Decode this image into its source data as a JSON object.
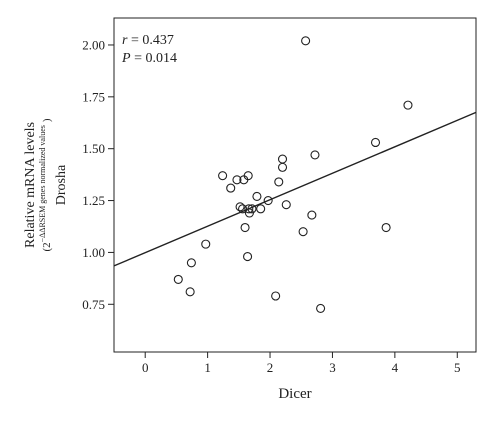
{
  "chart_data": {
    "type": "scatter",
    "title": "",
    "xlabel": "Dicer",
    "ylabel_line1": "Relative mRNA levels",
    "ylabel_line2_prefix": "(2",
    "ylabel_line2_sup": "−ΔΔRSEM genes normalized values",
    "ylabel_line2_suffix": ")",
    "ylabel_line3": "Drosha",
    "xlim": [
      -0.5,
      5.3
    ],
    "ylim": [
      0.52,
      2.13
    ],
    "x_ticks": [
      0,
      1,
      2,
      3,
      4,
      5
    ],
    "x_tick_labels": [
      "0",
      "1",
      "2",
      "3",
      "4",
      "5"
    ],
    "y_ticks": [
      0.75,
      1.0,
      1.25,
      1.5,
      1.75,
      2.0
    ],
    "y_tick_labels": [
      "0.75",
      "1.00",
      "1.25",
      "1.50",
      "1.75",
      "2.00"
    ],
    "annotation_r_symbol": "r",
    "annotation_r_value": " = 0.437",
    "annotation_p_symbol": "P",
    "annotation_p_value": " = 0.014",
    "regression_line": {
      "x": [
        -0.5,
        5.3
      ],
      "y": [
        0.935,
        1.675
      ]
    },
    "points": [
      {
        "x": 0.53,
        "y": 0.87
      },
      {
        "x": 0.72,
        "y": 0.81
      },
      {
        "x": 0.74,
        "y": 0.95
      },
      {
        "x": 0.97,
        "y": 1.04
      },
      {
        "x": 1.24,
        "y": 1.37
      },
      {
        "x": 1.37,
        "y": 1.31
      },
      {
        "x": 1.47,
        "y": 1.35
      },
      {
        "x": 1.52,
        "y": 1.22
      },
      {
        "x": 1.56,
        "y": 1.21
      },
      {
        "x": 1.58,
        "y": 1.35
      },
      {
        "x": 1.6,
        "y": 1.12
      },
      {
        "x": 1.64,
        "y": 0.98
      },
      {
        "x": 1.65,
        "y": 1.37
      },
      {
        "x": 1.66,
        "y": 1.21
      },
      {
        "x": 1.67,
        "y": 1.19
      },
      {
        "x": 1.71,
        "y": 1.21
      },
      {
        "x": 1.79,
        "y": 1.27
      },
      {
        "x": 1.85,
        "y": 1.21
      },
      {
        "x": 1.97,
        "y": 1.25
      },
      {
        "x": 2.09,
        "y": 0.79
      },
      {
        "x": 2.14,
        "y": 1.34
      },
      {
        "x": 2.2,
        "y": 1.41
      },
      {
        "x": 2.2,
        "y": 1.45
      },
      {
        "x": 2.26,
        "y": 1.23
      },
      {
        "x": 2.53,
        "y": 1.1
      },
      {
        "x": 2.57,
        "y": 2.02
      },
      {
        "x": 2.67,
        "y": 1.18
      },
      {
        "x": 2.72,
        "y": 1.47
      },
      {
        "x": 2.81,
        "y": 0.73
      },
      {
        "x": 3.69,
        "y": 1.53
      },
      {
        "x": 3.86,
        "y": 1.12
      },
      {
        "x": 4.21,
        "y": 1.71
      }
    ],
    "marker": "open-circle",
    "line_color": "#222222",
    "marker_color": "#222222",
    "grid": false,
    "legend": "none"
  }
}
